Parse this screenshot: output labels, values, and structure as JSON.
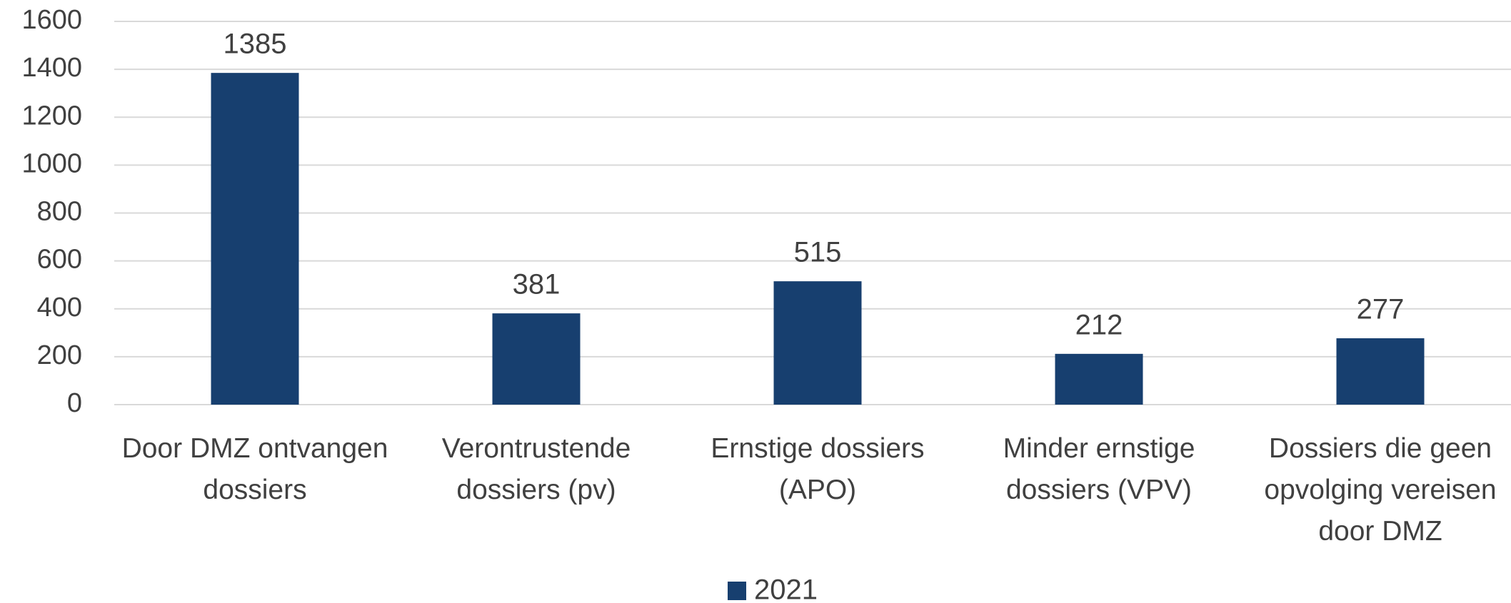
{
  "chart_data": {
    "type": "bar",
    "categories": [
      "Door DMZ ontvangen dossiers",
      "Verontrustende dossiers (pv)",
      "Ernstige dossiers (APO)",
      "Minder ernstige dossiers (VPV)",
      "Dossiers die geen opvolging vereisen door DMZ"
    ],
    "series": [
      {
        "name": "2021",
        "color": "#173f6f",
        "values": [
          1385,
          381,
          515,
          212,
          277
        ]
      }
    ],
    "ylim": [
      0,
      1600
    ],
    "yticks": [
      0,
      200,
      400,
      600,
      800,
      1000,
      1200,
      1400,
      1600
    ],
    "grid": true,
    "legend": "bottom"
  }
}
